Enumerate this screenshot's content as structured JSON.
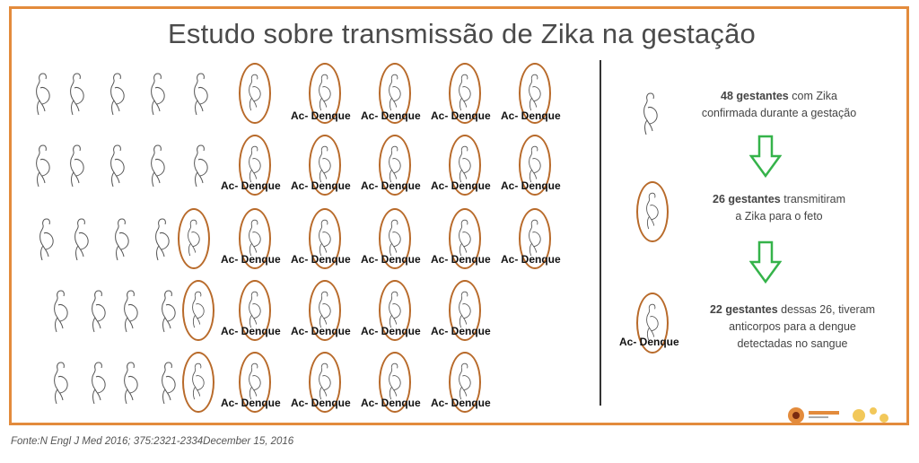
{
  "title": "Estudo sobre transmissão de Zika na gestação",
  "label_text": "Ac- Denque",
  "grid": {
    "rows": [
      {
        "plain": 5,
        "zika_only": 0,
        "zika_dengue": 5
      },
      {
        "plain": 5,
        "zika_only": 0,
        "zika_dengue": 5
      },
      {
        "plain": 4,
        "zika_only": 1,
        "zika_dengue": 5
      },
      {
        "plain": 4,
        "zika_only": 1,
        "zika_dengue": 4
      },
      {
        "plain": 4,
        "zika_only": 1,
        "zika_dengue": 4
      }
    ],
    "row1_first_oval_unlabeled": true
  },
  "legend": {
    "item1_bold": "48 gestantes",
    "item1_rest": " com Zika",
    "item1_line2": "confirmada durante a gestação",
    "item2_bold": "26 gestantes",
    "item2_rest": " transmitiram",
    "item2_line2": "a Zika para o feto",
    "item3_bold": "22 gestantes",
    "item3_rest": " dessas 26, tiveram",
    "item3_line2": "anticorpos para a dengue",
    "item3_line3": "detectadas no sangue",
    "item3_label": "Ac- Denque"
  },
  "source": "Fonte:N Engl J Med 2016; 375:2321-2334December 15, 2016",
  "colors": {
    "frame": "#e38b3c",
    "oval": "#b86a2a",
    "arrow": "#35b34a"
  }
}
